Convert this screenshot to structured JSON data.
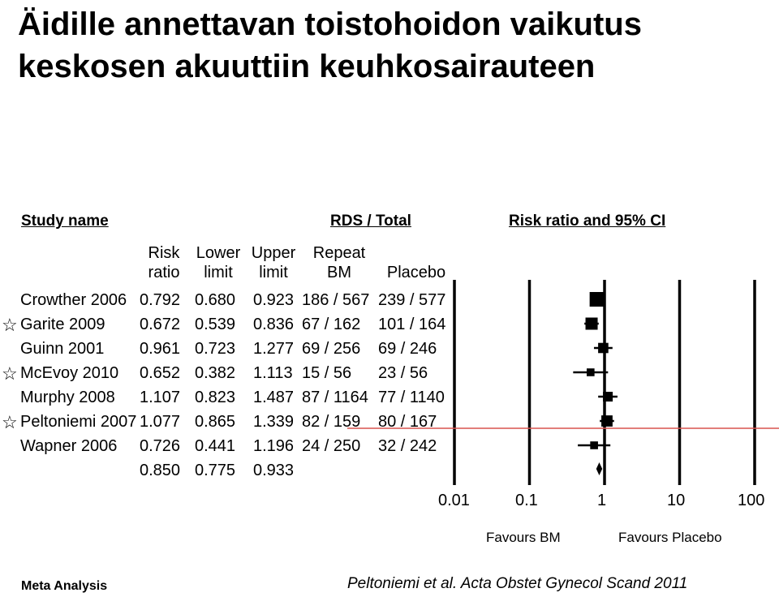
{
  "title_line1": "Äidille annettavan toistohoidon vaikutus",
  "title_line2": "keskosen akuuttiin keuhkosairauteen",
  "headers": {
    "study_name": "Study name",
    "rds_total": "RDS / Total",
    "rr_ci": "Risk ratio and 95% CI"
  },
  "columns": {
    "risk_ratio_1": "Risk",
    "risk_ratio_2": "ratio",
    "lower_1": "Lower",
    "lower_2": "limit",
    "upper_1": "Upper",
    "upper_2": "limit",
    "repeat_1": "Repeat",
    "repeat_2": "BM",
    "placebo": "Placebo"
  },
  "rows": [
    {
      "study": "Crowther 2006",
      "rr": "0.792",
      "lower": "0.680",
      "upper": "0.923",
      "repeat": "186 / 567",
      "placebo": "239 / 577",
      "starred": false
    },
    {
      "study": "Garite 2009",
      "rr": "0.672",
      "lower": "0.539",
      "upper": "0.836",
      "repeat": "67 / 162",
      "placebo": "101 / 164",
      "starred": true
    },
    {
      "study": "Guinn 2001",
      "rr": "0.961",
      "lower": "0.723",
      "upper": "1.277",
      "repeat": "69 / 256",
      "placebo": "69 / 246",
      "starred": false
    },
    {
      "study": "McEvoy 2010",
      "rr": "0.652",
      "lower": "0.382",
      "upper": "1.113",
      "repeat": "15 / 56",
      "placebo": "23 / 56",
      "starred": true
    },
    {
      "study": "Murphy 2008",
      "rr": "1.107",
      "lower": "0.823",
      "upper": "1.487",
      "repeat": "87 / 1164",
      "placebo": "77 / 1140",
      "starred": false
    },
    {
      "study": "Peltoniemi 2007",
      "rr": "1.077",
      "lower": "0.865",
      "upper": "1.339",
      "repeat": "82 / 159",
      "placebo": "80 / 167",
      "starred": true
    },
    {
      "study": "Wapner 2006",
      "rr": "0.726",
      "lower": "0.441",
      "upper": "1.196",
      "repeat": "24 / 250",
      "placebo": "32 / 242",
      "starred": false
    }
  ],
  "pooled": {
    "rr": "0.850",
    "lower": "0.775",
    "upper": "0.933"
  },
  "axis": {
    "ticks": [
      "0.01",
      "0.1",
      "1",
      "10",
      "100"
    ],
    "favours_left": "Favours BM",
    "favours_right": "Favours Placebo"
  },
  "footer": {
    "left": "Meta Analysis",
    "right": "Peltoniemi et al. Acta Obstet Gynecol Scand 2011"
  },
  "colors": {
    "highlight_line": "#d9534f"
  },
  "chart_data": {
    "type": "forest",
    "title": "Äidille annettavan toistohoidon vaikutus keskosen akuuttiin keuhkosairauteen",
    "scale": "log",
    "xlim": [
      0.01,
      100
    ],
    "x_ticks": [
      0.01,
      0.1,
      1,
      10,
      100
    ],
    "studies": [
      {
        "name": "Crowther 2006",
        "rr": 0.792,
        "lower": 0.68,
        "upper": 0.923,
        "weight": 1.0
      },
      {
        "name": "Garite 2009",
        "rr": 0.672,
        "lower": 0.539,
        "upper": 0.836,
        "weight": 0.75
      },
      {
        "name": "Guinn 2001",
        "rr": 0.961,
        "lower": 0.723,
        "upper": 1.277,
        "weight": 0.55
      },
      {
        "name": "McEvoy 2010",
        "rr": 0.652,
        "lower": 0.382,
        "upper": 1.113,
        "weight": 0.3
      },
      {
        "name": "Murphy 2008",
        "rr": 1.107,
        "lower": 0.823,
        "upper": 1.487,
        "weight": 0.5
      },
      {
        "name": "Peltoniemi 2007",
        "rr": 1.077,
        "lower": 0.865,
        "upper": 1.339,
        "weight": 0.65
      },
      {
        "name": "Wapner 2006",
        "rr": 0.726,
        "lower": 0.441,
        "upper": 1.196,
        "weight": 0.3
      }
    ],
    "pooled": {
      "rr": 0.85,
      "lower": 0.775,
      "upper": 0.933
    }
  }
}
